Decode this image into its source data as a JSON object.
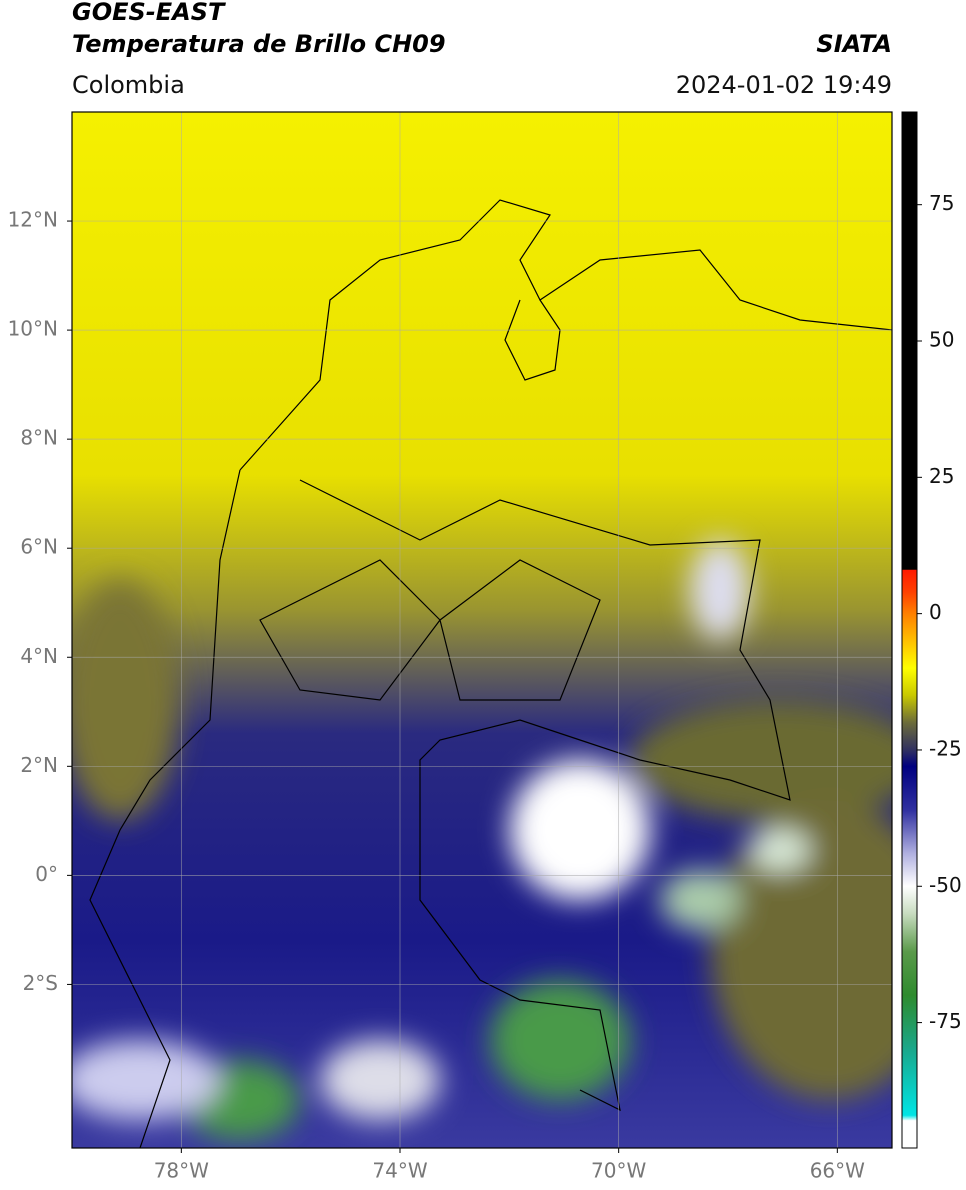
{
  "header": {
    "title": "GOES-EAST",
    "subtitle": "Temperatura de Brillo CH09",
    "source": "SIATA",
    "region": "Colombia",
    "datetime": "2024-01-02 19:49"
  },
  "map": {
    "lonlim": [
      -80,
      -65
    ],
    "latlim": [
      -5,
      14
    ],
    "lonticks": [
      {
        "value": -78,
        "label": "78°W"
      },
      {
        "value": -74,
        "label": "74°W"
      },
      {
        "value": -70,
        "label": "70°W"
      },
      {
        "value": -66,
        "label": "66°W"
      }
    ],
    "latticks": [
      {
        "value": 12,
        "label": "12°N"
      },
      {
        "value": 10,
        "label": "10°N"
      },
      {
        "value": 8,
        "label": "8°N"
      },
      {
        "value": 6,
        "label": "6°N"
      },
      {
        "value": 4,
        "label": "4°N"
      },
      {
        "value": 2,
        "label": "2°N"
      },
      {
        "value": 0,
        "label": "0°"
      },
      {
        "value": -2,
        "label": "2°S"
      }
    ],
    "grid": true
  },
  "colorbar": {
    "lim": [
      -98,
      92
    ],
    "ticks": [
      75,
      50,
      25,
      0,
      -25,
      -50,
      -75
    ],
    "stops": [
      [
        92,
        "#000000"
      ],
      [
        8.1,
        "#000000"
      ],
      [
        8,
        "#ff1a00"
      ],
      [
        4,
        "#ff4000"
      ],
      [
        0,
        "#ff8000"
      ],
      [
        -5,
        "#ffc000"
      ],
      [
        -10,
        "#ffff00"
      ],
      [
        -15,
        "#c8c800"
      ],
      [
        -20,
        "#6b6b3a"
      ],
      [
        -25,
        "#303060"
      ],
      [
        -28,
        "#000080"
      ],
      [
        -36,
        "#3030a0"
      ],
      [
        -44,
        "#b0b0e0"
      ],
      [
        -50,
        "#ffffff"
      ],
      [
        -55,
        "#c8dcc0"
      ],
      [
        -62,
        "#5a9a4a"
      ],
      [
        -70,
        "#2e8b2e"
      ],
      [
        -80,
        "#1aa88c"
      ],
      [
        -92,
        "#00e5e5"
      ],
      [
        -93,
        "#ffffff"
      ],
      [
        -98,
        "#ffffff"
      ]
    ]
  }
}
